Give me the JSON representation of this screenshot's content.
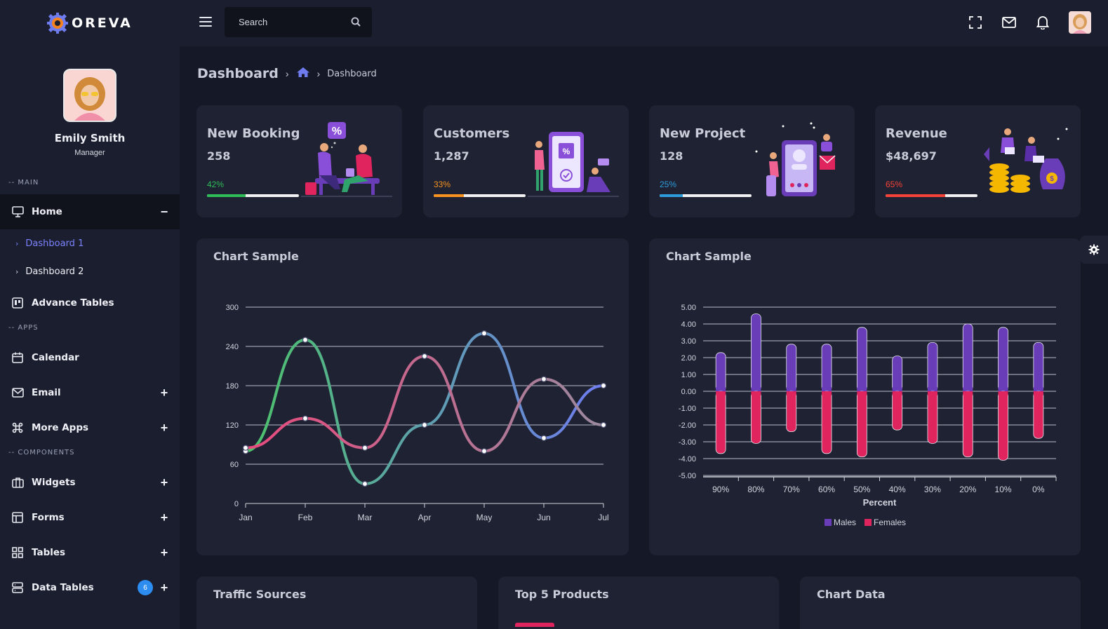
{
  "app": {
    "brand": "OREVA"
  },
  "user": {
    "name": "Emily Smith",
    "role": "Manager"
  },
  "sidebar": {
    "sections": {
      "main": "-- MAIN",
      "apps": "-- APPS",
      "components": "-- COMPONENTS"
    },
    "home": {
      "label": "Home",
      "toggle": "−"
    },
    "home_sub": [
      {
        "label": "Dashboard 1"
      },
      {
        "label": "Dashboard 2"
      }
    ],
    "items": [
      {
        "label": "Advance Tables"
      },
      {
        "label": "Calendar"
      },
      {
        "label": "Email",
        "toggle": "+"
      },
      {
        "label": "More Apps",
        "toggle": "+"
      },
      {
        "label": "Widgets",
        "toggle": "+"
      },
      {
        "label": "Forms",
        "toggle": "+"
      },
      {
        "label": "Tables",
        "toggle": "+"
      },
      {
        "label": "Data Tables",
        "toggle": "+",
        "badge": "6"
      }
    ]
  },
  "topbar": {
    "search_placeholder": "Search"
  },
  "breadcrumb": {
    "title": "Dashboard",
    "current": "Dashboard"
  },
  "stats": [
    {
      "title": "New Booking",
      "value": "258",
      "percent_label": "42%",
      "percent": 42,
      "color": "#2fbd57"
    },
    {
      "title": "Customers",
      "value": "1,287",
      "percent_label": "33%",
      "percent": 33,
      "color": "#f7931e"
    },
    {
      "title": "New Project",
      "value": "128",
      "percent_label": "25%",
      "percent": 25,
      "color": "#2d9cdb"
    },
    {
      "title": "Revenue",
      "value": "$48,697",
      "percent_label": "65%",
      "percent": 65,
      "color": "#f44336"
    }
  ],
  "panels": {
    "chart1_title": "Chart Sample",
    "chart2_title": "Chart Sample",
    "bottom": [
      "Traffic Sources",
      "Top 5 Products",
      "Chart Data"
    ]
  },
  "chart_data": [
    {
      "type": "line",
      "title": "Chart Sample",
      "categories": [
        "Jan",
        "Feb",
        "Mar",
        "Apr",
        "May",
        "Jun",
        "Jul"
      ],
      "ylim": [
        0,
        300
      ],
      "yticks": [
        "0",
        "60",
        "120",
        "180",
        "240",
        "300"
      ],
      "series": [
        {
          "values": [
            80,
            250,
            30,
            120,
            260,
            100,
            180
          ],
          "colors": [
            "#4cc36a",
            "#6f7cf0"
          ]
        },
        {
          "values": [
            85,
            130,
            85,
            225,
            80,
            190,
            120
          ],
          "colors": [
            "#e84a7d",
            "#9b8aa0"
          ]
        }
      ],
      "grid": true
    },
    {
      "type": "bar",
      "title": "Chart Sample",
      "xlabel": "Percent",
      "categories": [
        "90%",
        "80%",
        "70%",
        "60%",
        "50%",
        "40%",
        "30%",
        "20%",
        "10%",
        "0%"
      ],
      "ylim": [
        -5,
        5
      ],
      "yticks": [
        "5.00",
        "4.00",
        "3.00",
        "2.00",
        "1.00",
        "0.00",
        "-1.00",
        "-2.00",
        "-3.00",
        "-4.00",
        "-5.00"
      ],
      "series": [
        {
          "name": "Males",
          "color": "#6a3db8",
          "values": [
            2.3,
            4.6,
            2.8,
            2.8,
            3.8,
            2.1,
            2.9,
            4.0,
            3.8,
            2.9
          ]
        },
        {
          "name": "Females",
          "color": "#e0245e",
          "values": [
            -3.7,
            -3.1,
            -2.4,
            -3.7,
            -3.9,
            -2.3,
            -3.1,
            -3.9,
            -4.1,
            -2.8
          ]
        }
      ],
      "legend": "bottom",
      "grid": true
    }
  ]
}
